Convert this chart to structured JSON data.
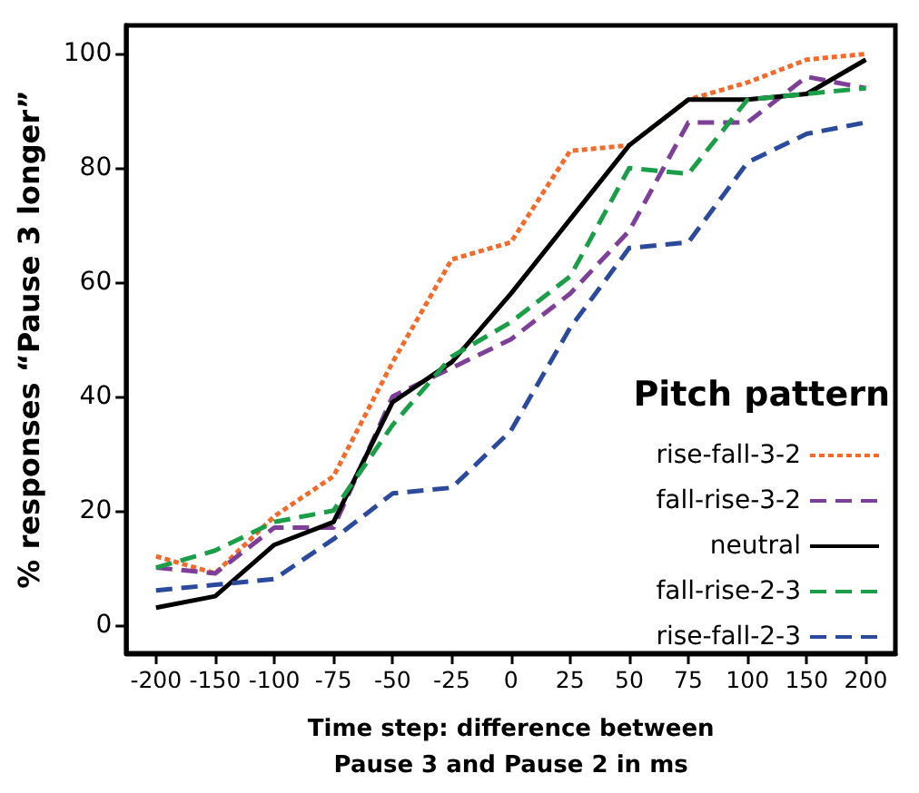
{
  "chart_data": {
    "type": "line",
    "xlabel": "Time step: difference between\nPause 3 and Pause 2 in ms",
    "ylabel": "% responses “Pause 3 longer”",
    "legend_title": "Pitch pattern",
    "categories": [
      "-200",
      "-150",
      "-100",
      "-75",
      "-50",
      "-25",
      "0",
      "25",
      "50",
      "75",
      "100",
      "150",
      "200"
    ],
    "series": [
      {
        "name": "rise-fall-3-2",
        "color": "#f26b2a",
        "line_style": "dotted",
        "values": [
          12,
          9,
          19,
          26,
          46,
          64,
          67,
          83,
          84,
          92,
          95,
          99,
          100
        ]
      },
      {
        "name": "fall-rise-3-2",
        "color": "#7e3f98",
        "line_style": "dashed",
        "values": [
          10,
          9,
          17,
          17,
          40,
          45,
          50,
          58,
          69,
          88,
          88,
          96,
          94
        ]
      },
      {
        "name": "neutral",
        "color": "#000000",
        "line_style": "solid",
        "values": [
          3,
          5,
          14,
          18,
          39,
          46,
          58,
          71,
          84,
          92,
          92,
          93,
          99
        ]
      },
      {
        "name": "fall-rise-2-3",
        "color": "#1a9e48",
        "line_style": "dashed",
        "values": [
          10,
          13,
          18,
          20,
          35,
          47,
          53,
          61,
          80,
          79,
          92,
          93,
          94
        ]
      },
      {
        "name": "rise-fall-2-3",
        "color": "#2b4a9c",
        "line_style": "dashed",
        "values": [
          6,
          7,
          8,
          15,
          23,
          24,
          34,
          52,
          66,
          67,
          81,
          86,
          88
        ]
      }
    ],
    "ylim": [
      -5,
      105
    ],
    "yticks": [
      0,
      20,
      40,
      60,
      80,
      100
    ],
    "grid": false,
    "legend": "bottom right",
    "marker": "none"
  }
}
